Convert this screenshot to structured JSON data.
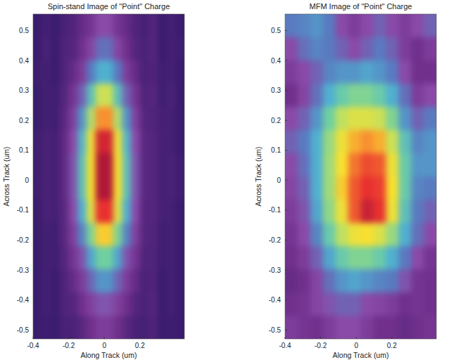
{
  "chart_data": [
    {
      "type": "heatmap",
      "title": "Spin-stand Image of \"Point\" Charge",
      "x_label": "Along Track (um)",
      "y_label": "Across Track (um)",
      "xlim": [
        -0.4,
        0.45
      ],
      "ylim": [
        -0.53,
        0.555
      ],
      "xticks": [
        -0.4,
        -0.2,
        0,
        0.2
      ],
      "yticks": [
        -0.5,
        -0.4,
        -0.3,
        -0.2,
        -0.1,
        0,
        0.1,
        0.2,
        0.3,
        0.4,
        0.5
      ],
      "zlim": [
        0,
        1
      ],
      "cells": [
        [
          0.1,
          0.12,
          0.1,
          0.13,
          0.14,
          0.18,
          0.22,
          0.3,
          0.3,
          0.22,
          0.18,
          0.14,
          0.12,
          0.15,
          0.1,
          0.12,
          0.1
        ],
        [
          0.1,
          0.13,
          0.1,
          0.14,
          0.15,
          0.2,
          0.28,
          0.38,
          0.38,
          0.28,
          0.2,
          0.15,
          0.13,
          0.15,
          0.1,
          0.12,
          0.11
        ],
        [
          0.11,
          0.12,
          0.1,
          0.14,
          0.18,
          0.25,
          0.4,
          0.5,
          0.5,
          0.4,
          0.25,
          0.18,
          0.13,
          0.14,
          0.11,
          0.12,
          0.1
        ],
        [
          0.1,
          0.12,
          0.11,
          0.15,
          0.22,
          0.35,
          0.55,
          0.72,
          0.72,
          0.55,
          0.35,
          0.22,
          0.14,
          0.15,
          0.11,
          0.13,
          0.1
        ],
        [
          0.1,
          0.12,
          0.11,
          0.16,
          0.26,
          0.45,
          0.68,
          0.88,
          0.88,
          0.68,
          0.45,
          0.26,
          0.15,
          0.14,
          0.12,
          0.12,
          0.1
        ],
        [
          0.11,
          0.13,
          0.12,
          0.17,
          0.3,
          0.52,
          0.78,
          0.97,
          0.97,
          0.78,
          0.52,
          0.3,
          0.16,
          0.15,
          0.12,
          0.12,
          0.1
        ],
        [
          0.11,
          0.13,
          0.12,
          0.17,
          0.32,
          0.55,
          0.8,
          1,
          1,
          0.8,
          0.55,
          0.32,
          0.16,
          0.15,
          0.12,
          0.13,
          0.11
        ],
        [
          0.11,
          0.13,
          0.12,
          0.17,
          0.32,
          0.55,
          0.8,
          1,
          1,
          0.8,
          0.55,
          0.32,
          0.16,
          0.15,
          0.12,
          0.13,
          0.11
        ],
        [
          0.1,
          0.13,
          0.12,
          0.16,
          0.3,
          0.5,
          0.75,
          0.95,
          0.95,
          0.75,
          0.5,
          0.3,
          0.15,
          0.15,
          0.12,
          0.12,
          0.1
        ],
        [
          0.1,
          0.12,
          0.11,
          0.16,
          0.26,
          0.42,
          0.62,
          0.82,
          0.82,
          0.62,
          0.42,
          0.26,
          0.15,
          0.14,
          0.11,
          0.12,
          0.1
        ],
        [
          0.1,
          0.12,
          0.11,
          0.15,
          0.22,
          0.32,
          0.48,
          0.6,
          0.6,
          0.48,
          0.32,
          0.22,
          0.14,
          0.14,
          0.11,
          0.12,
          0.1
        ],
        [
          0.1,
          0.12,
          0.1,
          0.14,
          0.18,
          0.25,
          0.36,
          0.45,
          0.45,
          0.36,
          0.25,
          0.18,
          0.13,
          0.14,
          0.1,
          0.12,
          0.1
        ],
        [
          0.1,
          0.12,
          0.1,
          0.14,
          0.15,
          0.2,
          0.26,
          0.32,
          0.32,
          0.26,
          0.2,
          0.15,
          0.13,
          0.15,
          0.1,
          0.12,
          0.1
        ],
        [
          0.1,
          0.11,
          0.1,
          0.13,
          0.13,
          0.16,
          0.2,
          0.25,
          0.25,
          0.2,
          0.16,
          0.13,
          0.12,
          0.14,
          0.1,
          0.11,
          0.1
        ]
      ]
    },
    {
      "type": "heatmap",
      "title": "MFM Image of \"Point\" Charge",
      "x_label": "Along Track (um)",
      "y_label": "Across Track (um)",
      "xlim": [
        -0.4,
        0.45
      ],
      "ylim": [
        -0.53,
        0.555
      ],
      "xticks": [
        -0.4,
        -0.2,
        0,
        0.2
      ],
      "yticks": [
        -0.5,
        -0.4,
        -0.3,
        -0.2,
        -0.1,
        0,
        0.1,
        0.2,
        0.3,
        0.4,
        0.5
      ],
      "zlim": [
        0,
        1
      ],
      "cells": [
        [
          0.4,
          0.42,
          0.45,
          0.4,
          0.3,
          0.25,
          0.3,
          0.35,
          0.3,
          0.25,
          0.3,
          0.35
        ],
        [
          0.3,
          0.38,
          0.42,
          0.4,
          0.35,
          0.3,
          0.35,
          0.4,
          0.35,
          0.25,
          0.2,
          0.25
        ],
        [
          0.25,
          0.3,
          0.35,
          0.42,
          0.45,
          0.45,
          0.48,
          0.45,
          0.4,
          0.3,
          0.2,
          0.2
        ],
        [
          0.2,
          0.28,
          0.38,
          0.5,
          0.58,
          0.62,
          0.62,
          0.58,
          0.5,
          0.38,
          0.25,
          0.3
        ],
        [
          0.3,
          0.35,
          0.45,
          0.6,
          0.7,
          0.75,
          0.75,
          0.72,
          0.62,
          0.45,
          0.35,
          0.4
        ],
        [
          0.35,
          0.4,
          0.5,
          0.65,
          0.78,
          0.85,
          0.88,
          0.85,
          0.72,
          0.55,
          0.42,
          0.45
        ],
        [
          0.3,
          0.38,
          0.5,
          0.66,
          0.8,
          0.9,
          0.93,
          0.92,
          0.78,
          0.58,
          0.45,
          0.45
        ],
        [
          0.28,
          0.35,
          0.5,
          0.66,
          0.82,
          0.92,
          0.95,
          0.94,
          0.8,
          0.58,
          0.42,
          0.4
        ],
        [
          0.25,
          0.32,
          0.48,
          0.64,
          0.78,
          0.92,
          0.98,
          0.95,
          0.78,
          0.55,
          0.4,
          0.35
        ],
        [
          0.22,
          0.3,
          0.42,
          0.58,
          0.7,
          0.78,
          0.8,
          0.75,
          0.65,
          0.5,
          0.38,
          0.3
        ],
        [
          0.2,
          0.25,
          0.35,
          0.48,
          0.58,
          0.62,
          0.62,
          0.58,
          0.5,
          0.4,
          0.3,
          0.22
        ],
        [
          0.18,
          0.2,
          0.28,
          0.38,
          0.45,
          0.48,
          0.45,
          0.42,
          0.4,
          0.32,
          0.22,
          0.2
        ],
        [
          0.2,
          0.22,
          0.28,
          0.32,
          0.35,
          0.35,
          0.3,
          0.28,
          0.25,
          0.2,
          0.22,
          0.2
        ],
        [
          0.25,
          0.22,
          0.2,
          0.25,
          0.3,
          0.3,
          0.25,
          0.2,
          0.2,
          0.18,
          0.2,
          0.22
        ]
      ]
    }
  ]
}
